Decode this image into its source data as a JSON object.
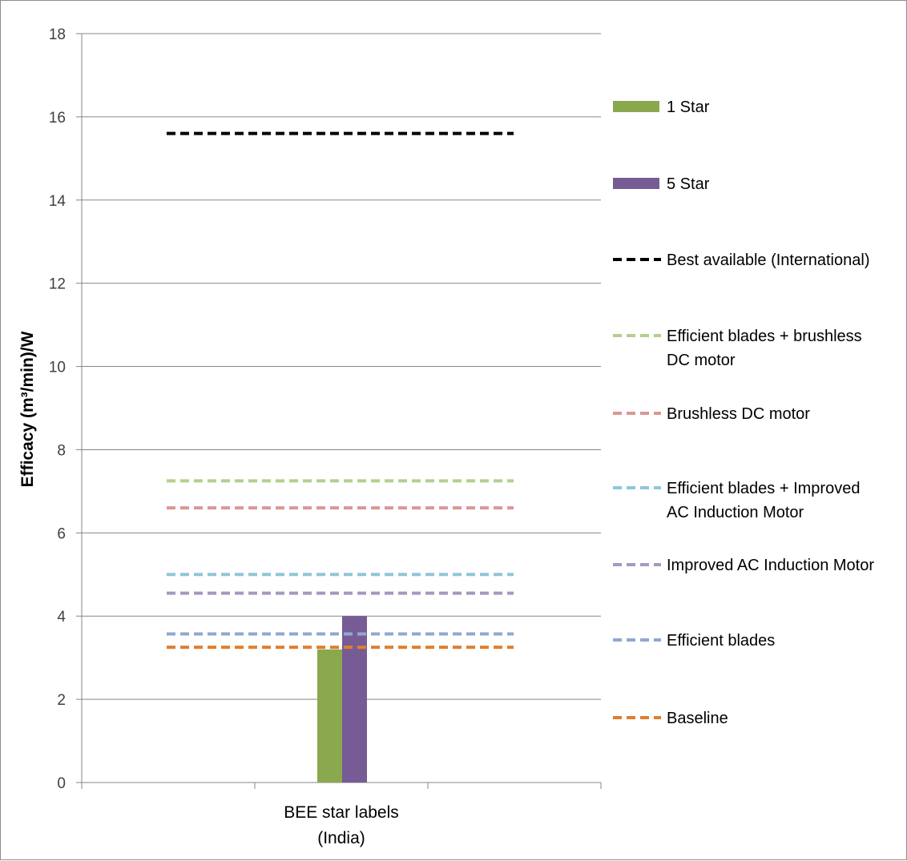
{
  "chart_data": {
    "type": "bar",
    "ylabel": "Efficacy (m³/min)/W",
    "ylim": [
      0,
      18
    ],
    "yticks": [
      "0",
      "2",
      "4",
      "6",
      "8",
      "10",
      "12",
      "14",
      "16",
      "18"
    ],
    "grid": true,
    "categories": [
      [
        "BEE star labels",
        "(India)"
      ]
    ],
    "series": [
      {
        "name": "1 Star",
        "values": [
          3.2
        ],
        "color": "#8aa84e"
      },
      {
        "name": "5 Star",
        "values": [
          4.0
        ],
        "color": "#775b94"
      }
    ],
    "reference_lines": [
      {
        "name": [
          "Best available (International)"
        ],
        "value": 15.6,
        "color": "#000000"
      },
      {
        "name": [
          "Efficient blades + brushless",
          "DC motor"
        ],
        "value": 7.25,
        "color": "#b3cf8e"
      },
      {
        "name": [
          "Brushless DC motor"
        ],
        "value": 6.6,
        "color": "#d99895"
      },
      {
        "name": [
          "Efficient blades + Improved",
          "AC Induction Motor"
        ],
        "value": 5.0,
        "color": "#8fc6d9"
      },
      {
        "name": [
          "Improved AC Induction Motor"
        ],
        "value": 4.55,
        "color": "#a897c2"
      },
      {
        "name": [
          "Efficient blades"
        ],
        "value": 3.57,
        "color": "#8fa8d2"
      },
      {
        "name": [
          "Baseline"
        ],
        "value": 3.25,
        "color": "#e07e2e"
      }
    ],
    "legend_position": "right"
  }
}
